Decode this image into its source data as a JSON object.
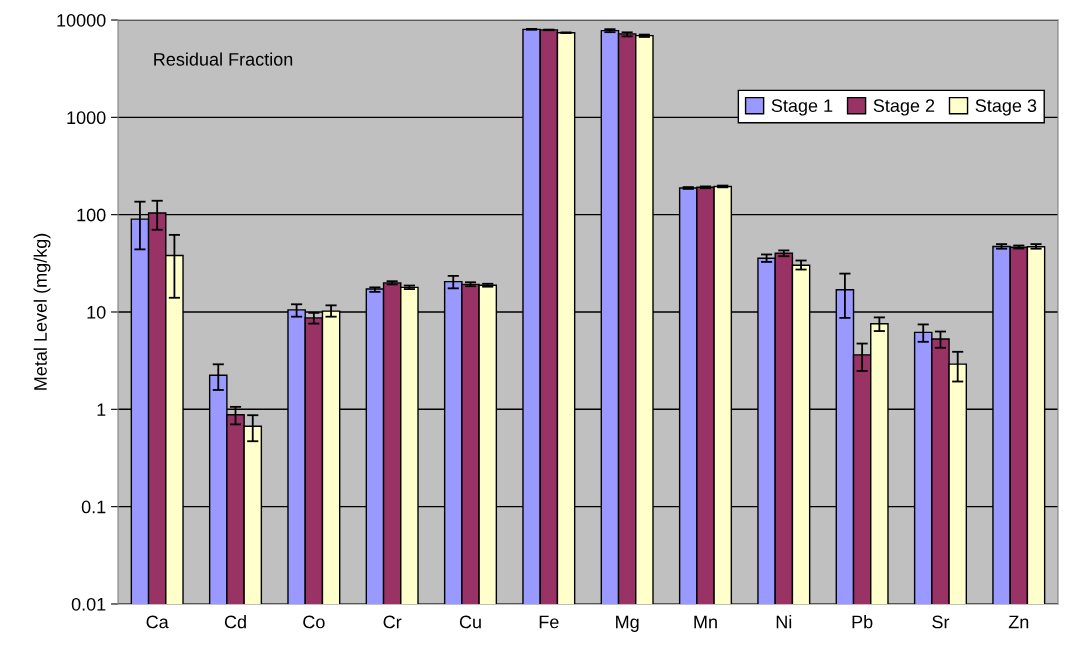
{
  "chart_data": {
    "type": "bar",
    "ylabel": "Metal Level (mg/kg)",
    "annotations": [
      "Residual Fraction"
    ],
    "categories": [
      "Ca",
      "Cd",
      "Co",
      "Cr",
      "Cu",
      "Fe",
      "Mg",
      "Mn",
      "Ni",
      "Pb",
      "Sr",
      "Zn"
    ],
    "series": [
      {
        "name": "Stage 1",
        "color": "#9999ff",
        "values": [
          90,
          2.24,
          10.5,
          17.2,
          20.5,
          8020,
          7780,
          188,
          35.7,
          16.9,
          6.17,
          47.1
        ],
        "errors": [
          [
            44,
            136
          ],
          [
            1.58,
            2.9
          ],
          [
            8.95,
            12.0
          ],
          [
            16.1,
            17.9
          ],
          [
            17.5,
            23.5
          ],
          [
            7940,
            8100
          ],
          [
            7500,
            8050
          ],
          [
            184,
            192
          ],
          [
            32.7,
            39
          ],
          [
            8.7,
            24.8
          ],
          [
            4.94,
            7.45
          ],
          [
            44.7,
            49.8
          ]
        ]
      },
      {
        "name": "Stage 2",
        "color": "#993366",
        "values": [
          104,
          0.88,
          8.7,
          19.9,
          19.2,
          7910,
          7200,
          191,
          40.2,
          3.63,
          5.27,
          46.3
        ],
        "errors": [
          [
            70,
            139
          ],
          [
            0.7,
            1.06
          ],
          [
            7.6,
            9.8
          ],
          [
            19.2,
            20.7
          ],
          [
            18.4,
            20.2
          ],
          [
            7850,
            7970
          ],
          [
            6790,
            7470
          ],
          [
            187,
            195
          ],
          [
            37.4,
            42.9
          ],
          [
            2.48,
            4.74
          ],
          [
            4.29,
            6.3
          ],
          [
            44.9,
            48.2
          ]
        ]
      },
      {
        "name": "Stage 3",
        "color": "#ffffcc",
        "values": [
          38,
          0.67,
          10.2,
          17.9,
          18.8,
          7410,
          6920,
          195,
          30.2,
          7.57,
          2.91,
          46.8
        ],
        "errors": [
          [
            14,
            62
          ],
          [
            0.47,
            0.87
          ],
          [
            8.95,
            11.7
          ],
          [
            17.2,
            18.7
          ],
          [
            18.2,
            19.5
          ],
          [
            7360,
            7460
          ],
          [
            6700,
            7080
          ],
          [
            191,
            199
          ],
          [
            27.3,
            33.8
          ],
          [
            6.37,
            8.8
          ],
          [
            1.93,
            3.9
          ],
          [
            44.7,
            49.8
          ]
        ]
      }
    ],
    "log": true,
    "ylim": [
      0.01,
      10000
    ],
    "yticks": [
      0.01,
      0.1,
      1,
      10,
      100,
      1000,
      10000
    ],
    "grid": "y",
    "legend": "top right"
  }
}
